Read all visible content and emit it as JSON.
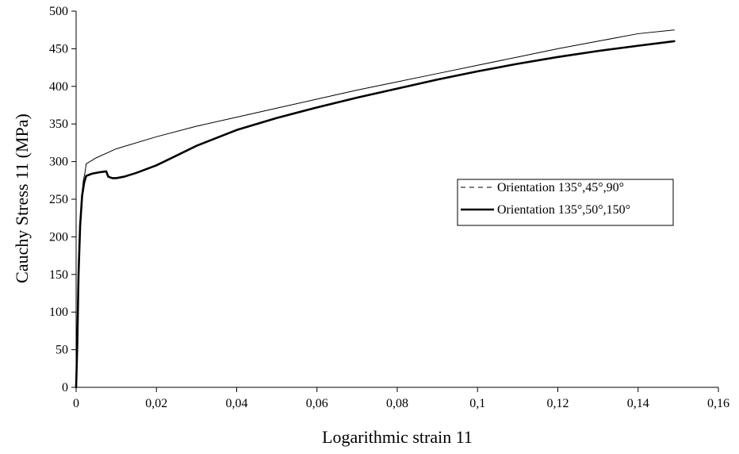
{
  "chart_data": {
    "type": "line",
    "xlabel": "Logarithmic strain 11",
    "ylabel": "Cauchy Stress 11 (MPa)",
    "xlim": [
      0,
      0.16
    ],
    "ylim": [
      0,
      500
    ],
    "x_ticks": [
      {
        "value": 0,
        "label": "0"
      },
      {
        "value": 0.02,
        "label": "0,02"
      },
      {
        "value": 0.04,
        "label": "0,04"
      },
      {
        "value": 0.06,
        "label": "0,06"
      },
      {
        "value": 0.08,
        "label": "0,08"
      },
      {
        "value": 0.1,
        "label": "0,1"
      },
      {
        "value": 0.12,
        "label": "0,12"
      },
      {
        "value": 0.14,
        "label": "0,14"
      },
      {
        "value": 0.16,
        "label": "0,16"
      }
    ],
    "y_ticks": [
      {
        "value": 0,
        "label": "0"
      },
      {
        "value": 50,
        "label": "50"
      },
      {
        "value": 100,
        "label": "100"
      },
      {
        "value": 150,
        "label": "150"
      },
      {
        "value": 200,
        "label": "200"
      },
      {
        "value": 250,
        "label": "250"
      },
      {
        "value": 300,
        "label": "300"
      },
      {
        "value": 350,
        "label": "350"
      },
      {
        "value": 400,
        "label": "400"
      },
      {
        "value": 450,
        "label": "450"
      },
      {
        "value": 500,
        "label": "500"
      }
    ],
    "grid": false,
    "legend_position": "right",
    "series": [
      {
        "name": "Orientation 135°,45°,90°",
        "color": "#000000",
        "style": "thin",
        "x": [
          0,
          0.0003,
          0.0008,
          0.0013,
          0.0018,
          0.0022,
          0.0025,
          0.005,
          0.01,
          0.02,
          0.03,
          0.04,
          0.05,
          0.06,
          0.07,
          0.08,
          0.09,
          0.1,
          0.11,
          0.12,
          0.13,
          0.14,
          0.149
        ],
        "y": [
          0,
          80,
          190,
          250,
          275,
          285,
          297,
          305,
          317,
          333,
          347,
          359,
          371,
          383,
          395,
          406,
          417,
          428,
          439,
          450,
          460,
          470,
          475
        ]
      },
      {
        "name": "Orientation 135°,50°,150°",
        "color": "#000000",
        "style": "thick",
        "x": [
          0,
          0.0003,
          0.0006,
          0.001,
          0.0015,
          0.002,
          0.0025,
          0.004,
          0.006,
          0.0075,
          0.008,
          0.009,
          0.01,
          0.012,
          0.015,
          0.02,
          0.025,
          0.03,
          0.04,
          0.05,
          0.06,
          0.07,
          0.08,
          0.09,
          0.1,
          0.11,
          0.12,
          0.13,
          0.14,
          0.149
        ],
        "y": [
          0,
          60,
          150,
          215,
          255,
          272,
          281,
          284,
          286,
          287,
          280,
          278,
          278,
          280,
          285,
          295,
          308,
          321,
          342,
          358,
          372,
          385,
          397,
          409,
          420,
          430,
          439,
          447,
          454,
          460
        ]
      }
    ]
  }
}
